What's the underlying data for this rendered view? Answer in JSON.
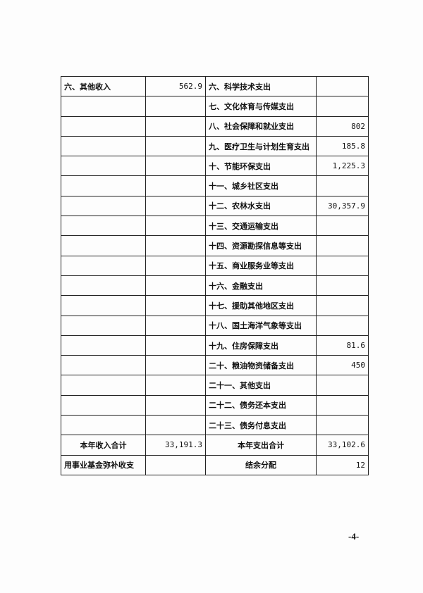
{
  "rows": [
    {
      "income_item": "六、其他收入",
      "income_amount": "562.9",
      "expense_item": "六、科学技术支出",
      "expense_amount": ""
    },
    {
      "income_item": "",
      "income_amount": "",
      "expense_item": "七、文化体育与传媒支出",
      "expense_amount": ""
    },
    {
      "income_item": "",
      "income_amount": "",
      "expense_item": "八、社会保障和就业支出",
      "expense_amount": "802"
    },
    {
      "income_item": "",
      "income_amount": "",
      "expense_item": "九、医疗卫生与计划生育支出",
      "expense_amount": "185.8"
    },
    {
      "income_item": "",
      "income_amount": "",
      "expense_item": "十、节能环保支出",
      "expense_amount": "1,225.3"
    },
    {
      "income_item": "",
      "income_amount": "",
      "expense_item": "十一、城乡社区支出",
      "expense_amount": ""
    },
    {
      "income_item": "",
      "income_amount": "",
      "expense_item": "十二、农林水支出",
      "expense_amount": "30,357.9"
    },
    {
      "income_item": "",
      "income_amount": "",
      "expense_item": "十三、交通运输支出",
      "expense_amount": ""
    },
    {
      "income_item": "",
      "income_amount": "",
      "expense_item": "十四、资源勘探信息等支出",
      "expense_amount": ""
    },
    {
      "income_item": "",
      "income_amount": "",
      "expense_item": "十五、商业服务业等支出",
      "expense_amount": ""
    },
    {
      "income_item": "",
      "income_amount": "",
      "expense_item": "十六、金融支出",
      "expense_amount": ""
    },
    {
      "income_item": "",
      "income_amount": "",
      "expense_item": "十七、援助其他地区支出",
      "expense_amount": ""
    },
    {
      "income_item": "",
      "income_amount": "",
      "expense_item": "十八、国土海洋气象等支出",
      "expense_amount": ""
    },
    {
      "income_item": "",
      "income_amount": "",
      "expense_item": "十九、住房保障支出",
      "expense_amount": "81.6"
    },
    {
      "income_item": "",
      "income_amount": "",
      "expense_item": "二十、粮油物资储备支出",
      "expense_amount": "450"
    },
    {
      "income_item": "",
      "income_amount": "",
      "expense_item": "二十一、其他支出",
      "expense_amount": ""
    },
    {
      "income_item": "",
      "income_amount": "",
      "expense_item": "二十二、债务还本支出",
      "expense_amount": ""
    },
    {
      "income_item": "",
      "income_amount": "",
      "expense_item": "二十三、债务付息支出",
      "expense_amount": ""
    }
  ],
  "totals": {
    "income_label": "本年收入合计",
    "income_amount": "33,191.3",
    "expense_label": "本年支出合计",
    "expense_amount": "33,102.6"
  },
  "fund": {
    "label": "用事业基金弥补收支",
    "amount": "",
    "expense_label": "结余分配",
    "expense_amount": "12"
  },
  "page_number": "-4-"
}
